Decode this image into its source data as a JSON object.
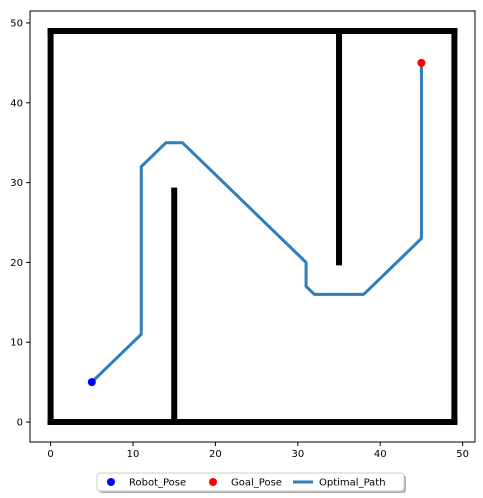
{
  "chart_data": {
    "type": "line",
    "title": "",
    "xlabel": "",
    "ylabel": "",
    "xlim": [
      -2.5,
      51.5
    ],
    "ylim": [
      -2.5,
      51.5
    ],
    "xticks": [
      0,
      10,
      20,
      30,
      40,
      50
    ],
    "yticks": [
      0,
      10,
      20,
      30,
      40,
      50
    ],
    "xtick_labels": [
      "0",
      "10",
      "20",
      "30",
      "40",
      "50"
    ],
    "ytick_labels": [
      "0",
      "10",
      "20",
      "30",
      "40",
      "50"
    ],
    "grid": false,
    "legend_position": "bottom-center",
    "obstacles": [
      {
        "x": [
          0,
          49
        ],
        "y": [
          0,
          0
        ]
      },
      {
        "x": [
          49,
          49
        ],
        "y": [
          0,
          49
        ]
      },
      {
        "x": [
          49,
          0
        ],
        "y": [
          49,
          49
        ]
      },
      {
        "x": [
          0,
          0
        ],
        "y": [
          49,
          0
        ]
      },
      {
        "x": [
          15,
          15
        ],
        "y": [
          0,
          29
        ]
      },
      {
        "x": [
          35,
          35
        ],
        "y": [
          49,
          20
        ]
      }
    ],
    "series": [
      {
        "name": "Robot_Pose",
        "kind": "point",
        "color": "#0000ff",
        "x": [
          5
        ],
        "y": [
          5
        ]
      },
      {
        "name": "Goal_Pose",
        "kind": "point",
        "color": "#ff0000",
        "x": [
          45
        ],
        "y": [
          45
        ]
      },
      {
        "name": "Optimal_Path",
        "kind": "line",
        "color": "#2f7eb8",
        "x": [
          5,
          11,
          11,
          14,
          16,
          31,
          31,
          32,
          38,
          45,
          45
        ],
        "y": [
          5,
          11,
          32,
          35,
          35,
          20,
          17,
          16,
          16,
          23,
          45
        ]
      }
    ]
  }
}
